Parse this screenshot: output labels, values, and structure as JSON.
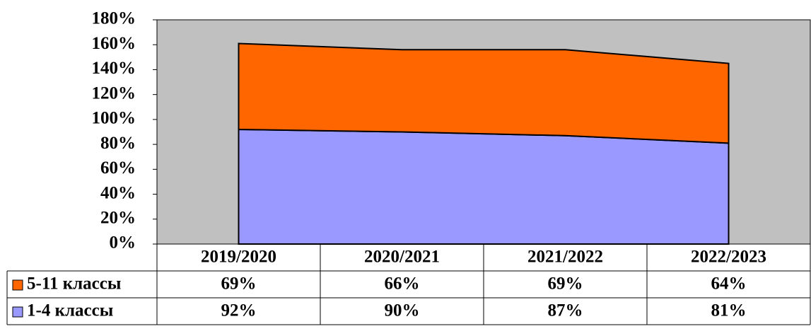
{
  "chart_data": {
    "type": "stacked_area",
    "categories": [
      "2019/2020",
      "2020/2021",
      "2021/2022",
      "2022/2023"
    ],
    "series": [
      {
        "name": "1-4 классы",
        "color": "#9999ff",
        "values": [
          92,
          90,
          87,
          81
        ],
        "value_labels": [
          "92%",
          "90%",
          "87%",
          "81%"
        ]
      },
      {
        "name": "5-11 классы",
        "color": "#ff6600",
        "values": [
          69,
          66,
          69,
          64
        ],
        "value_labels": [
          "69%",
          "66%",
          "69%",
          "64%"
        ]
      }
    ],
    "ylim": [
      0,
      180
    ],
    "yticks": [
      {
        "value": 0,
        "label": "0%"
      },
      {
        "value": 20,
        "label": "20%"
      },
      {
        "value": 40,
        "label": "40%"
      },
      {
        "value": 60,
        "label": "60%"
      },
      {
        "value": 80,
        "label": "80%"
      },
      {
        "value": 100,
        "label": "100%"
      },
      {
        "value": 120,
        "label": "120%"
      },
      {
        "value": 140,
        "label": "140%"
      },
      {
        "value": 160,
        "label": "160%"
      },
      {
        "value": 180,
        "label": "180%"
      }
    ],
    "plot_background": "#c0c0c0",
    "legend": "data-table"
  }
}
